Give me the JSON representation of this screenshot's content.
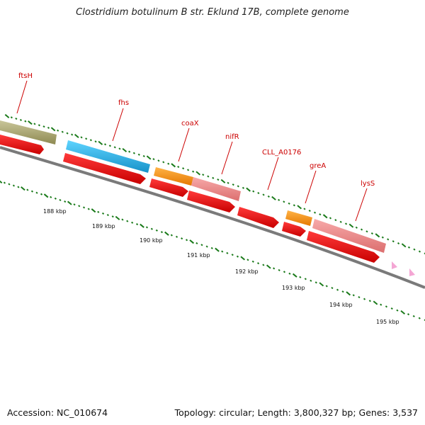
{
  "title": "Clostridium botulinum B str. Eklund 17B, complete genome",
  "accession": "Accession: NC_010674",
  "summary": "Topology: circular; Length: 3,800,327 bp; Genes: 3,537",
  "colors": {
    "background": "#ffffff",
    "backbone": "#7a7a7a",
    "cds_red": "#ee1111",
    "label_red": "#cc0000",
    "tick_green": "#1a7a1a",
    "olive": "#b5b27a",
    "cyan": "#2ab8ee",
    "orange": "#ff9a1a",
    "salmon": "#f08a8a",
    "pink": "#f4a6d4"
  },
  "ruler_labels": [
    "188 kbp",
    "189 kbp",
    "190 kbp",
    "191 kbp",
    "192 kbp",
    "193 kbp",
    "194 kbp",
    "195 kbp"
  ],
  "gene_labels": [
    {
      "name": "ftsH",
      "color": "label_red"
    },
    {
      "name": "fhs",
      "color": "label_red"
    },
    {
      "name": "coaX",
      "color": "label_red"
    },
    {
      "name": "nifR",
      "color": "label_red"
    },
    {
      "name": "CLL_A0176",
      "color": "label_red"
    },
    {
      "name": "greA",
      "color": "label_red"
    },
    {
      "name": "lysS",
      "color": "label_red"
    }
  ],
  "feature_tracks": {
    "outer": [
      {
        "name": "ftsH",
        "color": "olive"
      },
      {
        "name": "fhs",
        "color": "cyan"
      },
      {
        "name": "coaX",
        "color": "orange"
      },
      {
        "name": "nifR",
        "color": "salmon"
      },
      {
        "name": "greA",
        "color": "orange"
      },
      {
        "name": "lysS",
        "color": "salmon"
      }
    ],
    "cds": 9,
    "rna": 2
  }
}
